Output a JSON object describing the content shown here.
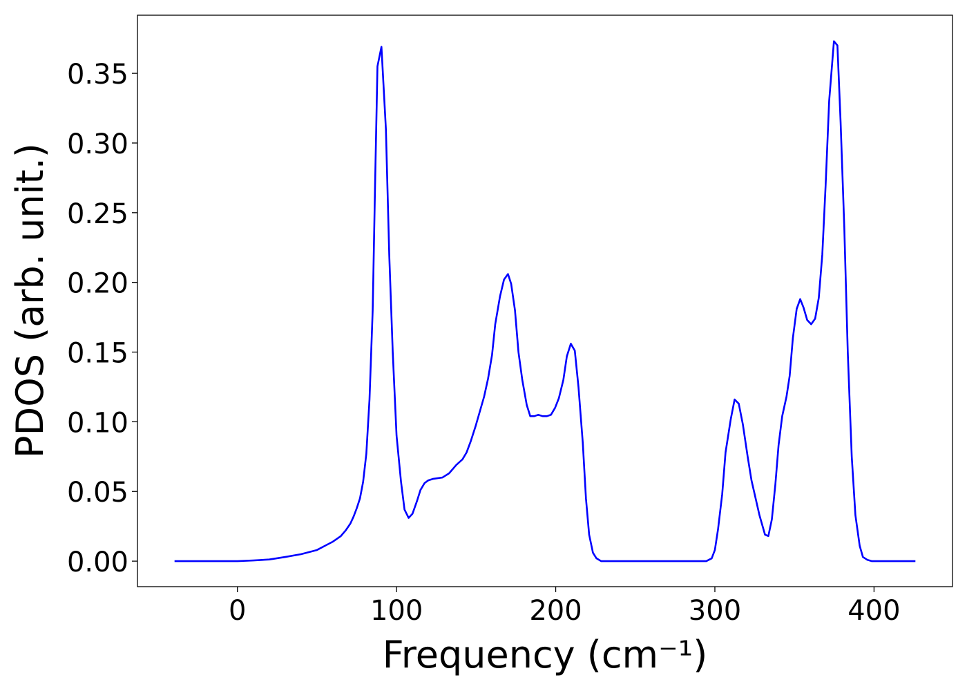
{
  "chart_data": {
    "type": "line",
    "xlabel": "Frequency (cm⁻¹)",
    "ylabel": "PDOS (arb. unit.)",
    "xlim": [
      -62.8,
      449.3
    ],
    "ylim": [
      -0.0183,
      0.3917
    ],
    "xticks": [
      0,
      100,
      200,
      300,
      400
    ],
    "yticks": [
      {
        "value": 0,
        "label": "0.00"
      },
      0.05,
      {
        "value": 0.1,
        "label": "0.10"
      },
      0.15,
      {
        "value": 0.2,
        "label": "0.20"
      },
      0.25,
      {
        "value": 0.3,
        "label": "0.30"
      },
      0.35
    ],
    "grid": false,
    "x": [
      -39.5,
      -20,
      0,
      10,
      20,
      30,
      40,
      50,
      55,
      60,
      65,
      68,
      71,
      73,
      75,
      77,
      79,
      81,
      83,
      85,
      86.5,
      88,
      90.5,
      93.3,
      95.4,
      97.6,
      100,
      102.8,
      105,
      107.6,
      110,
      112.8,
      115,
      117.6,
      120,
      122.8,
      128.8,
      133,
      137.5,
      141.4,
      144,
      146.6,
      149.7,
      155,
      157.5,
      160,
      162,
      165,
      167.5,
      170,
      172,
      174.4,
      176.6,
      179,
      181.8,
      184,
      186.5,
      189,
      191.8,
      194.4,
      197,
      199.6,
      202,
      204.8,
      207,
      209.5,
      212,
      214.3,
      217,
      219,
      221,
      223.4,
      225.6,
      228.6,
      260,
      294.6,
      298,
      300,
      302,
      304.6,
      306.7,
      310,
      312.4,
      315,
      317.6,
      320.6,
      323,
      325.8,
      328,
      331.5,
      333.6,
      335.8,
      338,
      340,
      342.3,
      345,
      347,
      349,
      351.4,
      353.6,
      355.7,
      358,
      360.5,
      363,
      365.3,
      367.5,
      369.6,
      371.8,
      374.8,
      377,
      379,
      381.3,
      383.5,
      386,
      388.3,
      391,
      393,
      395.7,
      398.7,
      426
    ],
    "series": [
      {
        "color": "#0000ff",
        "values": [
          0,
          0,
          0,
          0.0005,
          0.0012,
          0.003,
          0.005,
          0.008,
          0.011,
          0.014,
          0.018,
          0.022,
          0.027,
          0.032,
          0.038,
          0.045,
          0.057,
          0.077,
          0.116,
          0.18,
          0.27,
          0.355,
          0.369,
          0.31,
          0.22,
          0.15,
          0.09,
          0.057,
          0.037,
          0.031,
          0.034,
          0.043,
          0.051,
          0.056,
          0.058,
          0.059,
          0.06,
          0.063,
          0.069,
          0.073,
          0.078,
          0.086,
          0.097,
          0.118,
          0.131,
          0.148,
          0.17,
          0.19,
          0.202,
          0.206,
          0.199,
          0.18,
          0.15,
          0.13,
          0.112,
          0.104,
          0.104,
          0.105,
          0.104,
          0.104,
          0.105,
          0.11,
          0.117,
          0.13,
          0.147,
          0.156,
          0.151,
          0.125,
          0.085,
          0.045,
          0.019,
          0.006,
          0.002,
          0,
          0,
          0,
          0.002,
          0.008,
          0.023,
          0.048,
          0.078,
          0.102,
          0.116,
          0.113,
          0.098,
          0.075,
          0.058,
          0.044,
          0.033,
          0.019,
          0.018,
          0.03,
          0.055,
          0.083,
          0.104,
          0.118,
          0.133,
          0.16,
          0.181,
          0.188,
          0.182,
          0.173,
          0.17,
          0.174,
          0.189,
          0.22,
          0.27,
          0.33,
          0.373,
          0.37,
          0.315,
          0.24,
          0.15,
          0.075,
          0.033,
          0.011,
          0.003,
          0.001,
          0,
          0
        ]
      }
    ]
  }
}
